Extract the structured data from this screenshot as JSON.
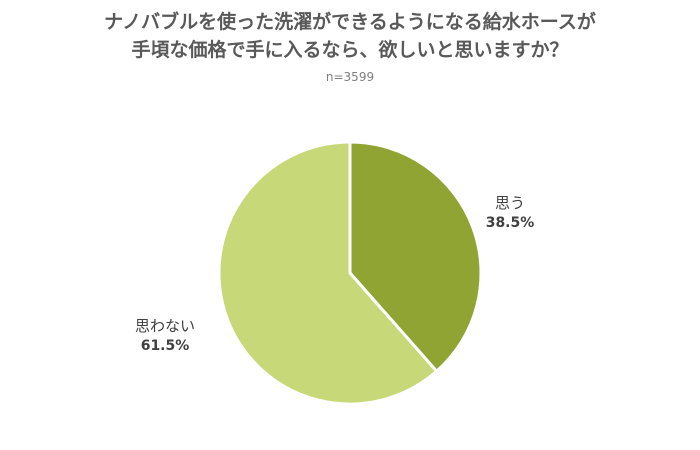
{
  "chart_data": {
    "type": "pie",
    "title_lines": [
      "ナノバブルを使った洗濯ができるようになる給水ホースが",
      "手頃な価格で手に入るなら、欲しいと思いますか？"
    ],
    "subtitle": "n=3599",
    "slices": [
      {
        "name": "思う",
        "value": 38.5,
        "label": "38.5%",
        "color": "#8fa432"
      },
      {
        "name": "思わない",
        "value": 61.5,
        "label": "61.5%",
        "color": "#c6d878"
      }
    ],
    "start_angle": "12 o'clock",
    "direction": "clockwise",
    "separator_color": "#ffffff"
  }
}
